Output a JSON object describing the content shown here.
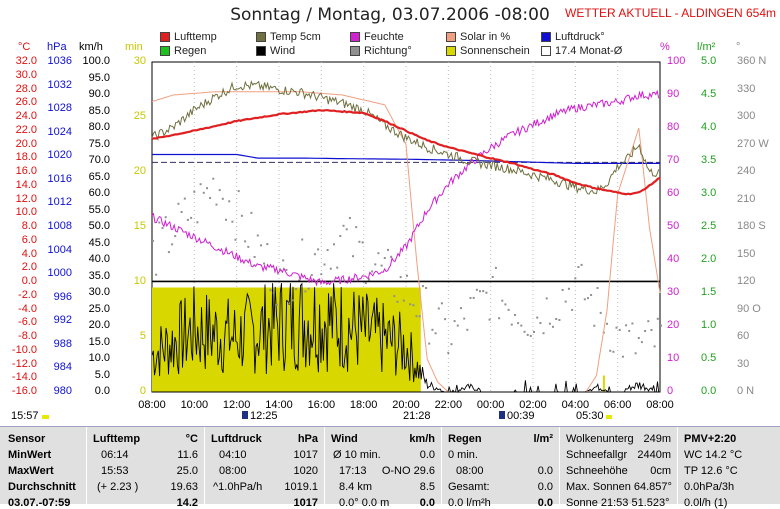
{
  "title": "Sonntag / Montag, 03.07.2006  -08:00",
  "station": "WETTER AKTUELL - ALDINGEN 654m",
  "legend": [
    {
      "label": "Lufttemp",
      "color": "#e02020"
    },
    {
      "label": "Regen",
      "color": "#20c020"
    },
    {
      "label": "Temp 5cm",
      "color": "#707040"
    },
    {
      "label": "Wind",
      "color": "#000000"
    },
    {
      "label": "Feuchte",
      "color": "#d020d0"
    },
    {
      "label": "Richtung°",
      "color": "#909090"
    },
    {
      "label": "Solar in %",
      "color": "#f0a080"
    },
    {
      "label": "Sonnenschein",
      "color": "#d8d800"
    },
    {
      "label": "Luftdruck°",
      "color": "#1010d0"
    },
    {
      "label": "17.4 Monat-Ø",
      "color": "#ffffff"
    }
  ],
  "axes_headers": {
    "celsius": "°C",
    "hpa": "hPa",
    "kmh": "km/h",
    "min": "min",
    "pct": "%",
    "lm2": "l/m²",
    "deg": "°"
  },
  "ticks": {
    "celsius": [
      "32.0",
      "30.0",
      "28.0",
      "26.0",
      "24.0",
      "22.0",
      "20.0",
      "18.0",
      "16.0",
      "14.0",
      "12.0",
      "10.0",
      "8.0",
      "6.0",
      "4.0",
      "2.0",
      "0.0",
      "-2.0",
      "-4.0",
      "-6.0",
      "-8.0",
      "-10.0",
      "-12.0",
      "-14.0",
      "-16.0"
    ],
    "hpa": [
      "1036",
      "1032",
      "1028",
      "1024",
      "1020",
      "1016",
      "1012",
      "1008",
      "1004",
      "1000",
      "996",
      "992",
      "988",
      "984",
      "980"
    ],
    "kmh": [
      "100.0",
      "95.0",
      "90.0",
      "85.0",
      "80.0",
      "75.0",
      "70.0",
      "65.0",
      "60.0",
      "55.0",
      "50.0",
      "45.0",
      "40.0",
      "35.0",
      "30.0",
      "25.0",
      "20.0",
      "15.0",
      "10.0",
      "5.0",
      "0.0"
    ],
    "min": [
      "30",
      "25",
      "20",
      "15",
      "10",
      "5",
      "0"
    ],
    "pct": [
      "100",
      "90",
      "80",
      "70",
      "60",
      "50",
      "40",
      "30",
      "20",
      "10",
      "0"
    ],
    "lm2": [
      "5.0",
      "4.5",
      "4.0",
      "3.5",
      "3.0",
      "2.5",
      "2.0",
      "1.5",
      "1.0",
      "0.5",
      "0.0"
    ],
    "deg": [
      "360 N",
      "330",
      "300",
      "270 W",
      "240",
      "210",
      "180 S",
      "150",
      "120",
      "90 O",
      "60",
      "30",
      "0 N"
    ]
  },
  "x_ticks": [
    "08:00",
    "10:00",
    "12:00",
    "14:00",
    "16:00",
    "18:00",
    "20:00",
    "22:00",
    "00:00",
    "02:00",
    "04:00",
    "06:00",
    "08:00"
  ],
  "sun_events": [
    "15:57",
    "12:25",
    "21:28",
    "00:39",
    "05:30"
  ],
  "chart_data": {
    "type": "line",
    "title": "Sonntag / Montag, 03.07.2006  -08:00",
    "x_range": [
      "08:00",
      "08:00"
    ],
    "series": [
      {
        "name": "Lufttemp",
        "unit": "°C",
        "x": [
          0,
          2,
          4,
          6,
          8,
          10,
          11,
          12,
          13,
          14,
          15,
          16,
          17,
          18,
          19,
          20,
          21,
          22,
          22.5,
          23,
          23.5,
          24
        ],
        "values": [
          20.8,
          22.0,
          23.4,
          24.4,
          25.0,
          24.6,
          23.4,
          22.0,
          20.6,
          19.6,
          18.8,
          18.0,
          17.3,
          16.4,
          15.6,
          14.4,
          13.6,
          13.0,
          12.8,
          13.0,
          14.0,
          15.2
        ]
      },
      {
        "name": "Temp 5cm",
        "unit": "°C",
        "x": [
          0,
          1,
          2,
          3,
          4,
          5,
          6,
          7,
          8,
          9,
          10,
          11,
          12,
          13,
          14,
          15,
          16,
          17,
          18,
          19,
          20,
          21,
          21.5,
          22,
          22.5,
          23,
          23.5,
          24
        ],
        "values": [
          21,
          22.5,
          25,
          27,
          28.6,
          28.5,
          28,
          27.6,
          26.8,
          26,
          25,
          22.8,
          21,
          19.6,
          18.6,
          17.6,
          17.0,
          16.4,
          15.6,
          14.8,
          13.8,
          13.2,
          14.4,
          16.8,
          18,
          20,
          16,
          15.8
        ]
      },
      {
        "name": "Feuchte",
        "unit": "%",
        "x": [
          0,
          1,
          2,
          3,
          4,
          5,
          6,
          7,
          8,
          9,
          10,
          11,
          12,
          13,
          14,
          15,
          16,
          17,
          18,
          19,
          20,
          21,
          22,
          22.5,
          23,
          24
        ],
        "values": [
          53,
          50,
          47,
          44,
          41,
          38,
          37,
          35,
          33,
          34,
          35,
          37,
          44,
          55,
          63,
          69,
          74,
          78,
          81,
          84,
          86,
          87,
          88,
          89,
          90,
          90
        ]
      },
      {
        "name": "Luftdruck°",
        "unit": "hPa",
        "x": [
          0,
          4,
          5,
          7,
          9,
          12,
          15,
          17,
          19,
          20,
          21,
          24
        ],
        "values": [
          1020.3,
          1020.3,
          1019.7,
          1019.7,
          1019.6,
          1019.5,
          1019.3,
          1019.1,
          1018.9,
          1018.8,
          1018.8,
          1018.8
        ]
      },
      {
        "name": "17.4 Monat-Ø",
        "unit": "°C",
        "x": [
          0,
          24
        ],
        "values": [
          17.4,
          17.4
        ]
      },
      {
        "name": "Solar in %",
        "unit": "%",
        "x": [
          0,
          1,
          3,
          5,
          7,
          9,
          11,
          12,
          12.5,
          13,
          13.5,
          14,
          20.5,
          21,
          21.5,
          22,
          22.5,
          23,
          23.5,
          24
        ],
        "values": [
          88,
          90,
          91,
          91,
          91,
          90,
          87,
          75,
          40,
          10,
          3,
          0,
          0,
          5,
          25,
          60,
          70,
          80,
          50,
          30
        ]
      },
      {
        "name": "Sonnenschein",
        "unit": "min",
        "x": [
          0,
          12.7,
          12.71,
          21.3,
          21.31,
          24
        ],
        "values": [
          9.5,
          9.5,
          0,
          0,
          1.5,
          0
        ]
      },
      {
        "name": "Wind",
        "unit": "km/h",
        "x": [
          0,
          2,
          4,
          6,
          8,
          10,
          12,
          13,
          14,
          15,
          16,
          17,
          18,
          19,
          20,
          21,
          22,
          23,
          24
        ],
        "values": [
          15,
          25,
          22,
          28,
          30,
          24,
          18,
          3,
          0,
          2,
          0,
          1,
          0,
          0,
          0,
          2,
          0,
          3,
          0
        ]
      },
      {
        "name": "Richtung°",
        "unit": "°",
        "x": [
          0,
          3,
          6,
          9,
          12,
          14,
          16,
          18,
          20,
          22,
          23,
          24
        ],
        "values": [
          150,
          230,
          120,
          170,
          110,
          60,
          110,
          80,
          120,
          60,
          50,
          60
        ]
      },
      {
        "name": "Regen",
        "unit": "l/m²",
        "x": [
          0,
          24
        ],
        "values": [
          0,
          0
        ]
      }
    ]
  },
  "table": {
    "sensor": {
      "header": "Sensor",
      "rows": [
        "MinWert",
        "MaxWert",
        "Durchschnitt",
        "03.07.-07:59"
      ]
    },
    "lufttemp": {
      "header": "Lufttemp",
      "unit": "°C",
      "rows": [
        [
          "06:14",
          "11.6"
        ],
        [
          "15:53",
          "25.0"
        ],
        [
          "(+ 2.23 )",
          "19.63"
        ],
        [
          "",
          "14.2"
        ]
      ]
    },
    "luftdruck": {
      "header": "Luftdruck",
      "unit": "hPa",
      "rows": [
        [
          "04:10",
          "1017"
        ],
        [
          "08:00",
          "1020"
        ],
        [
          "^1.0hPa/h",
          "1019.1"
        ],
        [
          "",
          "1017"
        ]
      ]
    },
    "wind": {
      "header": "Wind",
      "unit": "km/h",
      "rows": [
        [
          "Ø 10 min.",
          "0.0"
        ],
        [
          "17:13",
          "O-NO 29.6"
        ],
        [
          "8.4 km",
          "8.5"
        ],
        [
          "0.0°  0.0 m",
          "0.0"
        ]
      ]
    },
    "regen": {
      "header": "Regen",
      "unit": "l/m²",
      "rows": [
        [
          "0 min.",
          ""
        ],
        [
          "08:00",
          "0.0"
        ],
        [
          "Gesamt:",
          "0.0"
        ],
        [
          "0.0 l/m²h",
          "0.0"
        ]
      ]
    },
    "wolken": {
      "rows": [
        [
          "Wolkenunterg",
          "249m"
        ],
        [
          "Schneefallgr",
          "2440m"
        ],
        [
          "Schneehöhe",
          "0cm"
        ],
        [
          "Max. Sonnen 64.857°",
          ""
        ],
        [
          "Sonne 21:53 51.523°",
          ""
        ]
      ]
    },
    "pmv": {
      "header": "PMV+2:20",
      "rows": [
        "WC 14.2 °C",
        "TP 12.6 °C",
        "0.0hPa/3h",
        "0.0l/h (1)"
      ]
    }
  }
}
